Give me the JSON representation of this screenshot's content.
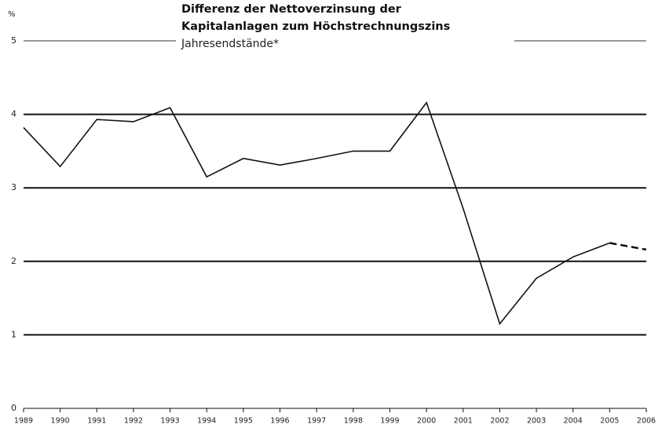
{
  "chart_data": {
    "type": "line",
    "title": [
      "Differenz der Nettoverzinsung der",
      "Kapitalanlagen zum Höchstrechnungszins"
    ],
    "subtitle": "Jahresendstände*",
    "y_label": "%",
    "categories": [
      "1989",
      "1990",
      "1991",
      "1992",
      "1993",
      "1994",
      "1995",
      "1996",
      "1997",
      "1998",
      "1999",
      "2000",
      "2001",
      "2002",
      "2003",
      "2004",
      "2005",
      "2006"
    ],
    "series": [
      {
        "color": "#111111",
        "values": [
          3.82,
          3.29,
          3.93,
          3.9,
          4.09,
          3.15,
          3.4,
          3.31,
          3.4,
          3.5,
          3.5,
          4.16,
          2.72,
          1.15,
          1.77,
          2.06,
          2.25,
          2.16
        ]
      }
    ],
    "dashed_from": "2005",
    "ylim": [
      0,
      5
    ],
    "yticks": [
      0,
      1,
      2,
      3,
      4,
      5
    ],
    "grid": true
  }
}
